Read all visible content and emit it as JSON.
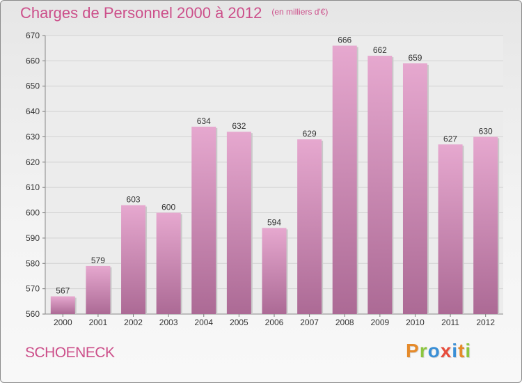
{
  "header": {
    "title": "Charges de Personnel 2000 à 2012",
    "unit_note": "(en milliers d'€)"
  },
  "footer": {
    "commune": "SCHOENECK",
    "brand": "Proxiti"
  },
  "colors": {
    "title": "#cc4f8a",
    "bar_top": "#e6a8cf",
    "bar_bottom": "#ac6a95",
    "brand_letters": [
      "#e58a2a",
      "#8cc63f",
      "#3a8fd6",
      "#e74c3c",
      "#3a8fd6",
      "#e58a2a",
      "#8cc63f"
    ]
  },
  "chart_data": {
    "type": "bar",
    "title": "Charges de Personnel 2000 à 2012",
    "subtitle": "(en milliers d'€)",
    "xlabel": "",
    "ylabel": "",
    "categories": [
      "2000",
      "2001",
      "2002",
      "2003",
      "2004",
      "2005",
      "2006",
      "2007",
      "2008",
      "2009",
      "2010",
      "2011",
      "2012"
    ],
    "values": [
      567,
      579,
      603,
      600,
      634,
      632,
      594,
      629,
      666,
      662,
      659,
      627,
      630
    ],
    "data_labels": [
      "567",
      "579",
      "603",
      "600",
      "634",
      "632",
      "594",
      "629",
      "666",
      "662",
      "659",
      "627",
      "630"
    ],
    "ylim": [
      560,
      670
    ],
    "yticks": [
      560,
      570,
      580,
      590,
      600,
      610,
      620,
      630,
      640,
      650,
      660,
      670
    ],
    "ytick_labels": [
      "560",
      "570",
      "580",
      "590",
      "600",
      "610",
      "620",
      "630",
      "640",
      "650",
      "660",
      "670"
    ],
    "grid": true,
    "legend": "none"
  }
}
